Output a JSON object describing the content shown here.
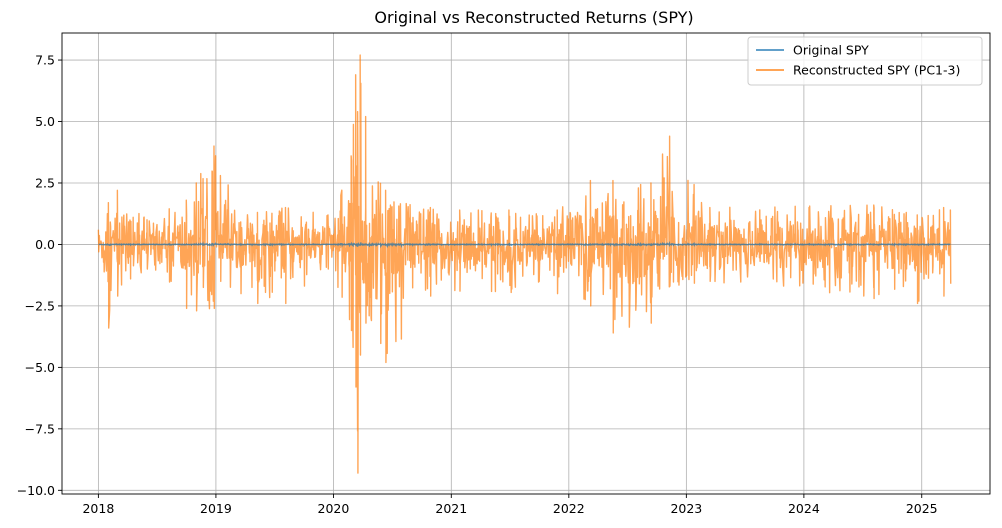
{
  "chart_data": {
    "type": "line",
    "title": "Original vs Reconstructed Returns (SPY)",
    "xlabel": "",
    "ylabel": "",
    "x_range": [
      "2018-01-02",
      "2025-03-31"
    ],
    "xlim": [
      "2017-09-10",
      "2025-08-01"
    ],
    "ylim": [
      -10.15,
      8.6
    ],
    "x_ticks": [
      "2018",
      "2019",
      "2020",
      "2021",
      "2022",
      "2023",
      "2024",
      "2025"
    ],
    "y_ticks": [
      7.5,
      5.0,
      2.5,
      0.0,
      -2.5,
      -5.0,
      -7.5,
      -10.0
    ],
    "y_tick_labels": [
      "7.5",
      "5.0",
      "2.5",
      "0.0",
      "−2.5",
      "−5.0",
      "−7.5",
      "−10.0"
    ],
    "grid": true,
    "legend_position": "top-right",
    "series": [
      {
        "name": "Original SPY",
        "color": "#1f77b4",
        "opacity": 0.7,
        "values_summary": "daily returns close to zero (approx. −0.12 to 0.1)"
      },
      {
        "name": "Reconstructed SPY (PC1-3)",
        "color": "#ff7f0e",
        "opacity": 0.7,
        "envelope": [
          {
            "x": "2018-01-01",
            "max": 0.6,
            "min": -0.3
          },
          {
            "x": "2018-02-01",
            "max": 1.7,
            "min": -3.4
          },
          {
            "x": "2018-03-01",
            "max": 2.2,
            "min": -2.1
          },
          {
            "x": "2018-06-01",
            "max": 1.0,
            "min": -1.0
          },
          {
            "x": "2018-10-01",
            "max": 1.8,
            "min": -2.6
          },
          {
            "x": "2018-11-01",
            "max": 2.5,
            "min": -2.7
          },
          {
            "x": "2018-12-26",
            "max": 4.0,
            "min": -2.6
          },
          {
            "x": "2019-01-15",
            "max": 2.8,
            "min": -1.5
          },
          {
            "x": "2019-05-10",
            "max": 1.3,
            "min": -2.4
          },
          {
            "x": "2019-08-05",
            "max": 1.5,
            "min": -2.4
          },
          {
            "x": "2019-12-15",
            "max": 1.2,
            "min": -1.0
          },
          {
            "x": "2020-02-25",
            "max": 3.6,
            "min": -3.5
          },
          {
            "x": "2020-03-10",
            "max": 6.9,
            "min": -5.8
          },
          {
            "x": "2020-03-16",
            "max": 5.4,
            "min": -9.3
          },
          {
            "x": "2020-03-24",
            "max": 7.7,
            "min": -4.5
          },
          {
            "x": "2020-04-10",
            "max": 5.2,
            "min": -3.2
          },
          {
            "x": "2020-06-11",
            "max": 2.2,
            "min": -4.8
          },
          {
            "x": "2020-10-28",
            "max": 1.5,
            "min": -2.1
          },
          {
            "x": "2021-01-27",
            "max": 1.4,
            "min": -1.9
          },
          {
            "x": "2021-11-26",
            "max": 1.4,
            "min": -2.0
          },
          {
            "x": "2022-03-09",
            "max": 2.6,
            "min": -2.5
          },
          {
            "x": "2022-05-18",
            "max": 2.6,
            "min": -3.6
          },
          {
            "x": "2022-09-13",
            "max": 2.5,
            "min": -3.2
          },
          {
            "x": "2022-11-10",
            "max": 4.4,
            "min": -1.7
          },
          {
            "x": "2023-03-15",
            "max": 1.5,
            "min": -1.5
          },
          {
            "x": "2024-08-05",
            "max": 1.6,
            "min": -2.2
          },
          {
            "x": "2024-12-18",
            "max": 1.2,
            "min": -2.4
          },
          {
            "x": "2025-03-10",
            "max": 1.5,
            "min": -2.1
          },
          {
            "x": "2025-03-31",
            "max": 1.4,
            "min": -1.6
          }
        ]
      }
    ]
  }
}
